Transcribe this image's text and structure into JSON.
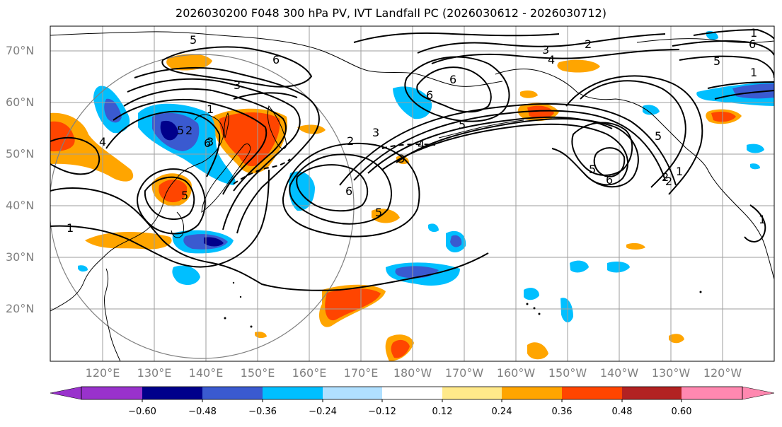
{
  "title": "2026030200 F048 300 hPa PV, IVT Landfall PC (2026030612 - 2026030712)",
  "lat_labels": [
    "70°N",
    "60°N",
    "50°N",
    "40°N",
    "30°N",
    "20°N"
  ],
  "lon_labels": [
    "120°E",
    "130°E",
    "140°E",
    "150°E",
    "160°E",
    "170°E",
    "180°W",
    "170°W",
    "160°W",
    "150°W",
    "140°W",
    "130°W",
    "120°W"
  ],
  "colorbar": {
    "ticks": [
      "−0.60",
      "−0.48",
      "−0.36",
      "−0.24",
      "−0.12",
      "0.12",
      "0.24",
      "0.36",
      "0.48",
      "0.60"
    ],
    "colors": [
      "#9932cc",
      "#00008b",
      "#3a5ad0",
      "#00bfff",
      "#b0e0ff",
      "#ffffff",
      "#ffe98a",
      "#ffa500",
      "#ff4500",
      "#b22222",
      "#ff88b0"
    ]
  },
  "contour_labels": [
    "5",
    "6",
    "3",
    "1",
    "2",
    "3",
    "4",
    "5",
    "6",
    "2",
    "3",
    "4",
    "5",
    "6",
    "5",
    "6",
    "1",
    "2",
    "3",
    "4",
    "5",
    "6",
    "1",
    "3",
    "5",
    "2",
    "1",
    "5",
    "6",
    "1",
    "2",
    "6",
    "5",
    "1"
  ]
}
